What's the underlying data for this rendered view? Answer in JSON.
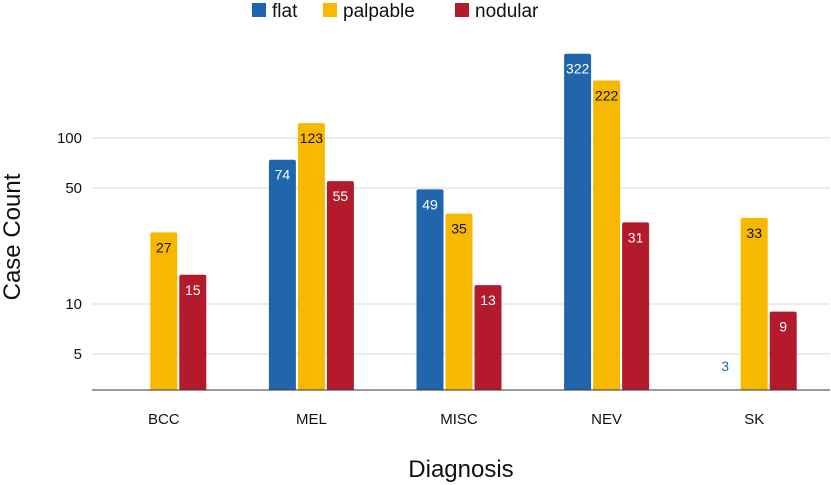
{
  "chart_data": {
    "type": "bar",
    "title": "",
    "xlabel": "Diagnosis",
    "ylabel": "Case Count",
    "yscale": "log",
    "ylim": [
      2.8,
      450
    ],
    "yticks": [
      5,
      10,
      50,
      100
    ],
    "grid": true,
    "legend_position": "top",
    "categories": [
      "BCC",
      "MEL",
      "MISC",
      "NEV",
      "SK"
    ],
    "series": [
      {
        "name": "flat",
        "color": "#2166ac",
        "values": [
          null,
          74,
          49,
          322,
          3
        ]
      },
      {
        "name": "palpable",
        "color": "#f6b900",
        "values": [
          27,
          123,
          35,
          222,
          33
        ]
      },
      {
        "name": "nodular",
        "color": "#b31b2d",
        "values": [
          15,
          55,
          13,
          31,
          9
        ]
      }
    ]
  }
}
